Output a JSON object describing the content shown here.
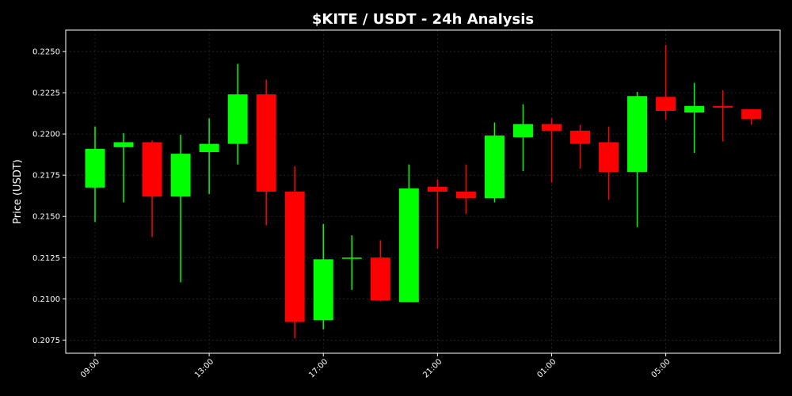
{
  "chart_data": {
    "type": "candlestick",
    "title": "$KITE / USDT - 24h Analysis",
    "ylabel": "Price (USDT)",
    "xlabel": "",
    "ylim": [
      0.2067,
      0.2263
    ],
    "yticks": [
      "0.2075",
      "0.2100",
      "0.2125",
      "0.2150",
      "0.2175",
      "0.2200",
      "0.2225",
      "0.2250"
    ],
    "x_tick_labels": [
      {
        "index": 0,
        "label": "09:00"
      },
      {
        "index": 4,
        "label": "13:00"
      },
      {
        "index": 8,
        "label": "17:00"
      },
      {
        "index": 12,
        "label": "21:00"
      },
      {
        "index": 16,
        "label": "01:00"
      },
      {
        "index": 20,
        "label": "05:00"
      }
    ],
    "grid": true,
    "up_color": "#00ff00",
    "down_color": "#ff0000",
    "background": "#000000",
    "candles": [
      {
        "open": 0.21675,
        "high": 0.22045,
        "low": 0.21465,
        "close": 0.2191
      },
      {
        "open": 0.2192,
        "high": 0.22005,
        "low": 0.21585,
        "close": 0.2195
      },
      {
        "open": 0.2195,
        "high": 0.2196,
        "low": 0.21375,
        "close": 0.2162
      },
      {
        "open": 0.2162,
        "high": 0.21995,
        "low": 0.211,
        "close": 0.2188
      },
      {
        "open": 0.2189,
        "high": 0.22095,
        "low": 0.21635,
        "close": 0.2194
      },
      {
        "open": 0.2194,
        "high": 0.22425,
        "low": 0.21815,
        "close": 0.2224
      },
      {
        "open": 0.2224,
        "high": 0.2233,
        "low": 0.21445,
        "close": 0.2165
      },
      {
        "open": 0.2165,
        "high": 0.21805,
        "low": 0.2076,
        "close": 0.2086
      },
      {
        "open": 0.2087,
        "high": 0.21455,
        "low": 0.20815,
        "close": 0.2124
      },
      {
        "open": 0.21245,
        "high": 0.21385,
        "low": 0.21055,
        "close": 0.2125
      },
      {
        "open": 0.2125,
        "high": 0.21355,
        "low": 0.20985,
        "close": 0.2099
      },
      {
        "open": 0.2098,
        "high": 0.21815,
        "low": 0.2098,
        "close": 0.2167
      },
      {
        "open": 0.2168,
        "high": 0.21725,
        "low": 0.21305,
        "close": 0.2165
      },
      {
        "open": 0.2165,
        "high": 0.21815,
        "low": 0.21515,
        "close": 0.2161
      },
      {
        "open": 0.2161,
        "high": 0.2207,
        "low": 0.21585,
        "close": 0.2199
      },
      {
        "open": 0.2198,
        "high": 0.2218,
        "low": 0.21775,
        "close": 0.2206
      },
      {
        "open": 0.2206,
        "high": 0.22095,
        "low": 0.21705,
        "close": 0.2202
      },
      {
        "open": 0.2202,
        "high": 0.22055,
        "low": 0.2179,
        "close": 0.2194
      },
      {
        "open": 0.2195,
        "high": 0.22045,
        "low": 0.216,
        "close": 0.2177
      },
      {
        "open": 0.2177,
        "high": 0.22255,
        "low": 0.21435,
        "close": 0.2223
      },
      {
        "open": 0.22225,
        "high": 0.2254,
        "low": 0.22085,
        "close": 0.2214
      },
      {
        "open": 0.2213,
        "high": 0.2231,
        "low": 0.21885,
        "close": 0.2217
      },
      {
        "open": 0.2217,
        "high": 0.22265,
        "low": 0.21955,
        "close": 0.2216
      },
      {
        "open": 0.2215,
        "high": 0.2215,
        "low": 0.22055,
        "close": 0.2209
      }
    ]
  }
}
